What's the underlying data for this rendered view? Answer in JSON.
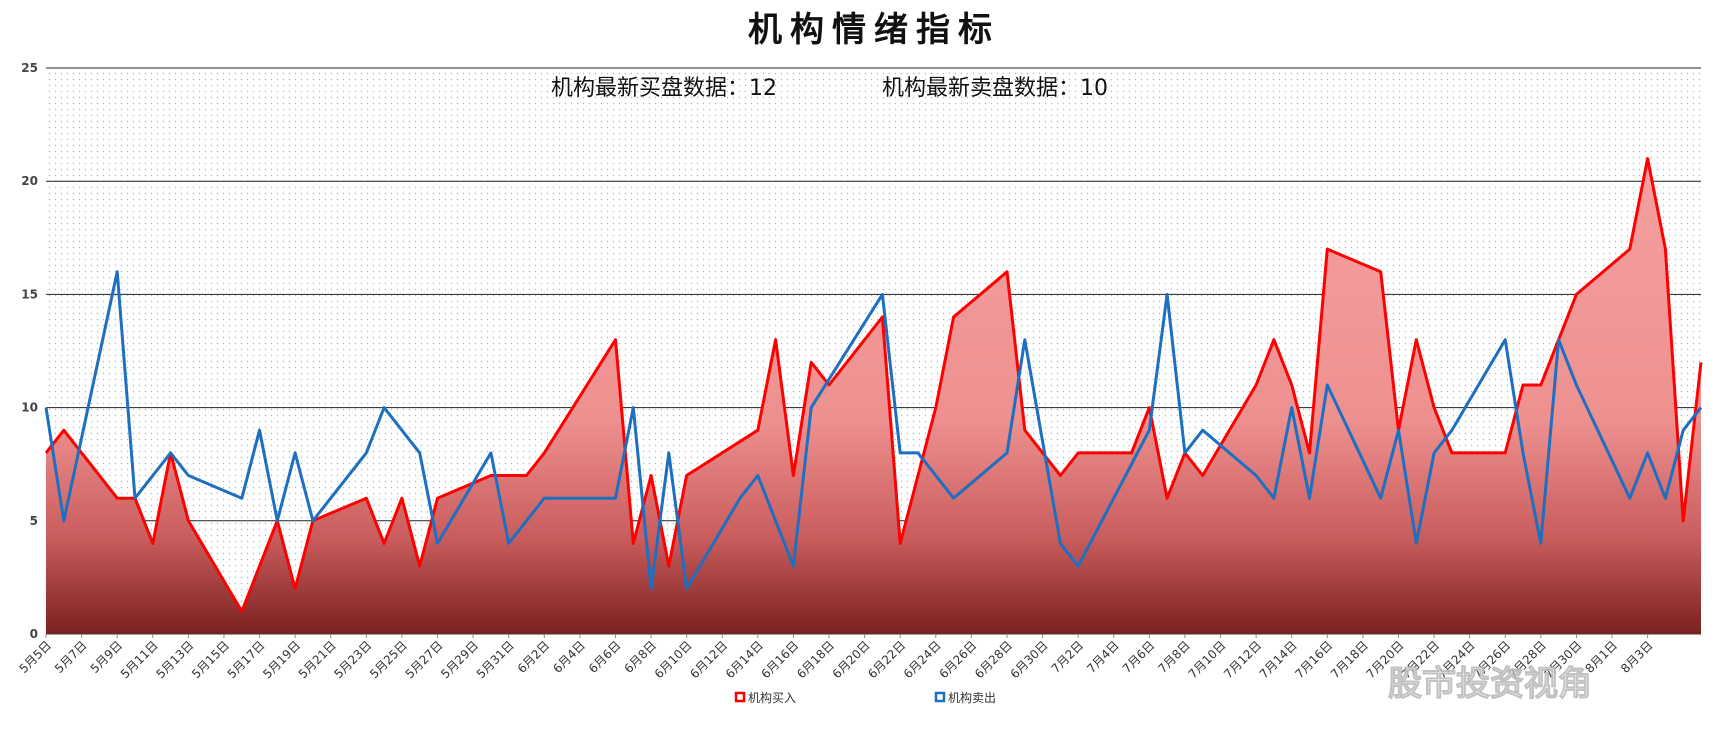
{
  "chart_data": {
    "type": "area",
    "title": "机构情绪指标",
    "subtitle_buy": "机构最新买盘数据：12",
    "subtitle_sell": "机构最新卖盘数据：10",
    "ylim": [
      0,
      25
    ],
    "yticks": [
      0,
      5,
      10,
      15,
      20,
      25
    ],
    "grid": true,
    "legend_position": "bottom",
    "x_tick_labels": [
      "5月5日",
      "5月7日",
      "5月9日",
      "5月11日",
      "5月13日",
      "5月15日",
      "5月17日",
      "5月19日",
      "5月21日",
      "5月23日",
      "5月25日",
      "5月27日",
      "5月29日",
      "5月31日",
      "6月2日",
      "6月4日",
      "6月6日",
      "6月8日",
      "6月10日",
      "6月12日",
      "6月14日",
      "6月16日",
      "6月18日",
      "6月20日",
      "6月22日",
      "6月24日",
      "6月26日",
      "6月28日",
      "6月30日",
      "7月2日",
      "7月4日",
      "7月6日",
      "7月8日",
      "7月10日",
      "7月12日",
      "7月14日",
      "7月16日",
      "7月18日",
      "7月20日",
      "7月22日",
      "7月24日",
      "7月26日",
      "7月28日",
      "7月30日",
      "8月1日",
      "8月3日"
    ],
    "series": [
      {
        "name": "机构买入",
        "color": "#ff0000",
        "fill": "#f08080",
        "points": [
          [
            0,
            8
          ],
          [
            1,
            9
          ],
          [
            4,
            6
          ],
          [
            5,
            6
          ],
          [
            6,
            4
          ],
          [
            7,
            8
          ],
          [
            8,
            5
          ],
          [
            11,
            1
          ],
          [
            13,
            5
          ],
          [
            14,
            2
          ],
          [
            15,
            5
          ],
          [
            18,
            6
          ],
          [
            19,
            4
          ],
          [
            20,
            6
          ],
          [
            21,
            3
          ],
          [
            22,
            6
          ],
          [
            25,
            7
          ],
          [
            27,
            7
          ],
          [
            28,
            8
          ],
          [
            32,
            13
          ],
          [
            33,
            4
          ],
          [
            34,
            7
          ],
          [
            35,
            3
          ],
          [
            36,
            7
          ],
          [
            40,
            9
          ],
          [
            41,
            13
          ],
          [
            42,
            7
          ],
          [
            43,
            12
          ],
          [
            44,
            11
          ],
          [
            47,
            14
          ],
          [
            48,
            4
          ],
          [
            50,
            10
          ],
          [
            51,
            14
          ],
          [
            54,
            16
          ],
          [
            55,
            9
          ],
          [
            57,
            7
          ],
          [
            58,
            8
          ],
          [
            61,
            8
          ],
          [
            62,
            10
          ],
          [
            63,
            6
          ],
          [
            64,
            8
          ],
          [
            65,
            7
          ],
          [
            68,
            11
          ],
          [
            69,
            13
          ],
          [
            70,
            11
          ],
          [
            71,
            8
          ],
          [
            72,
            17
          ],
          [
            75,
            16
          ],
          [
            76,
            9
          ],
          [
            77,
            13
          ],
          [
            78,
            10
          ],
          [
            79,
            8
          ],
          [
            82,
            8
          ],
          [
            83,
            11
          ],
          [
            84,
            11
          ],
          [
            86,
            15
          ],
          [
            89,
            17
          ],
          [
            90,
            21
          ],
          [
            91,
            17
          ],
          [
            92,
            5
          ],
          [
            93,
            12
          ]
        ]
      },
      {
        "name": "机构卖出",
        "color": "#1e6fc0",
        "points": [
          [
            0,
            10
          ],
          [
            1,
            5
          ],
          [
            4,
            16
          ],
          [
            5,
            6
          ],
          [
            7,
            8
          ],
          [
            8,
            7
          ],
          [
            11,
            6
          ],
          [
            12,
            9
          ],
          [
            13,
            5
          ],
          [
            14,
            8
          ],
          [
            15,
            5
          ],
          [
            18,
            8
          ],
          [
            19,
            10
          ],
          [
            21,
            8
          ],
          [
            22,
            4
          ],
          [
            25,
            8
          ],
          [
            26,
            4
          ],
          [
            28,
            6
          ],
          [
            32,
            6
          ],
          [
            33,
            10
          ],
          [
            34,
            2
          ],
          [
            35,
            8
          ],
          [
            36,
            2
          ],
          [
            39,
            6
          ],
          [
            40,
            7
          ],
          [
            42,
            3
          ],
          [
            43,
            10
          ],
          [
            47,
            15
          ],
          [
            48,
            8
          ],
          [
            49,
            8
          ],
          [
            51,
            6
          ],
          [
            54,
            8
          ],
          [
            55,
            13
          ],
          [
            57,
            4
          ],
          [
            58,
            3
          ],
          [
            62,
            9
          ],
          [
            63,
            15
          ],
          [
            64,
            8
          ],
          [
            65,
            9
          ],
          [
            68,
            7
          ],
          [
            69,
            6
          ],
          [
            70,
            10
          ],
          [
            71,
            6
          ],
          [
            72,
            11
          ],
          [
            75,
            6
          ],
          [
            76,
            9
          ],
          [
            77,
            4
          ],
          [
            78,
            8
          ],
          [
            79,
            9
          ],
          [
            82,
            13
          ],
          [
            83,
            8
          ],
          [
            84,
            4
          ],
          [
            85,
            13
          ],
          [
            86,
            11
          ],
          [
            89,
            6
          ],
          [
            90,
            8
          ],
          [
            91,
            6
          ],
          [
            92,
            9
          ],
          [
            93,
            10
          ]
        ]
      }
    ]
  },
  "watermark_text": "股市投资视角"
}
